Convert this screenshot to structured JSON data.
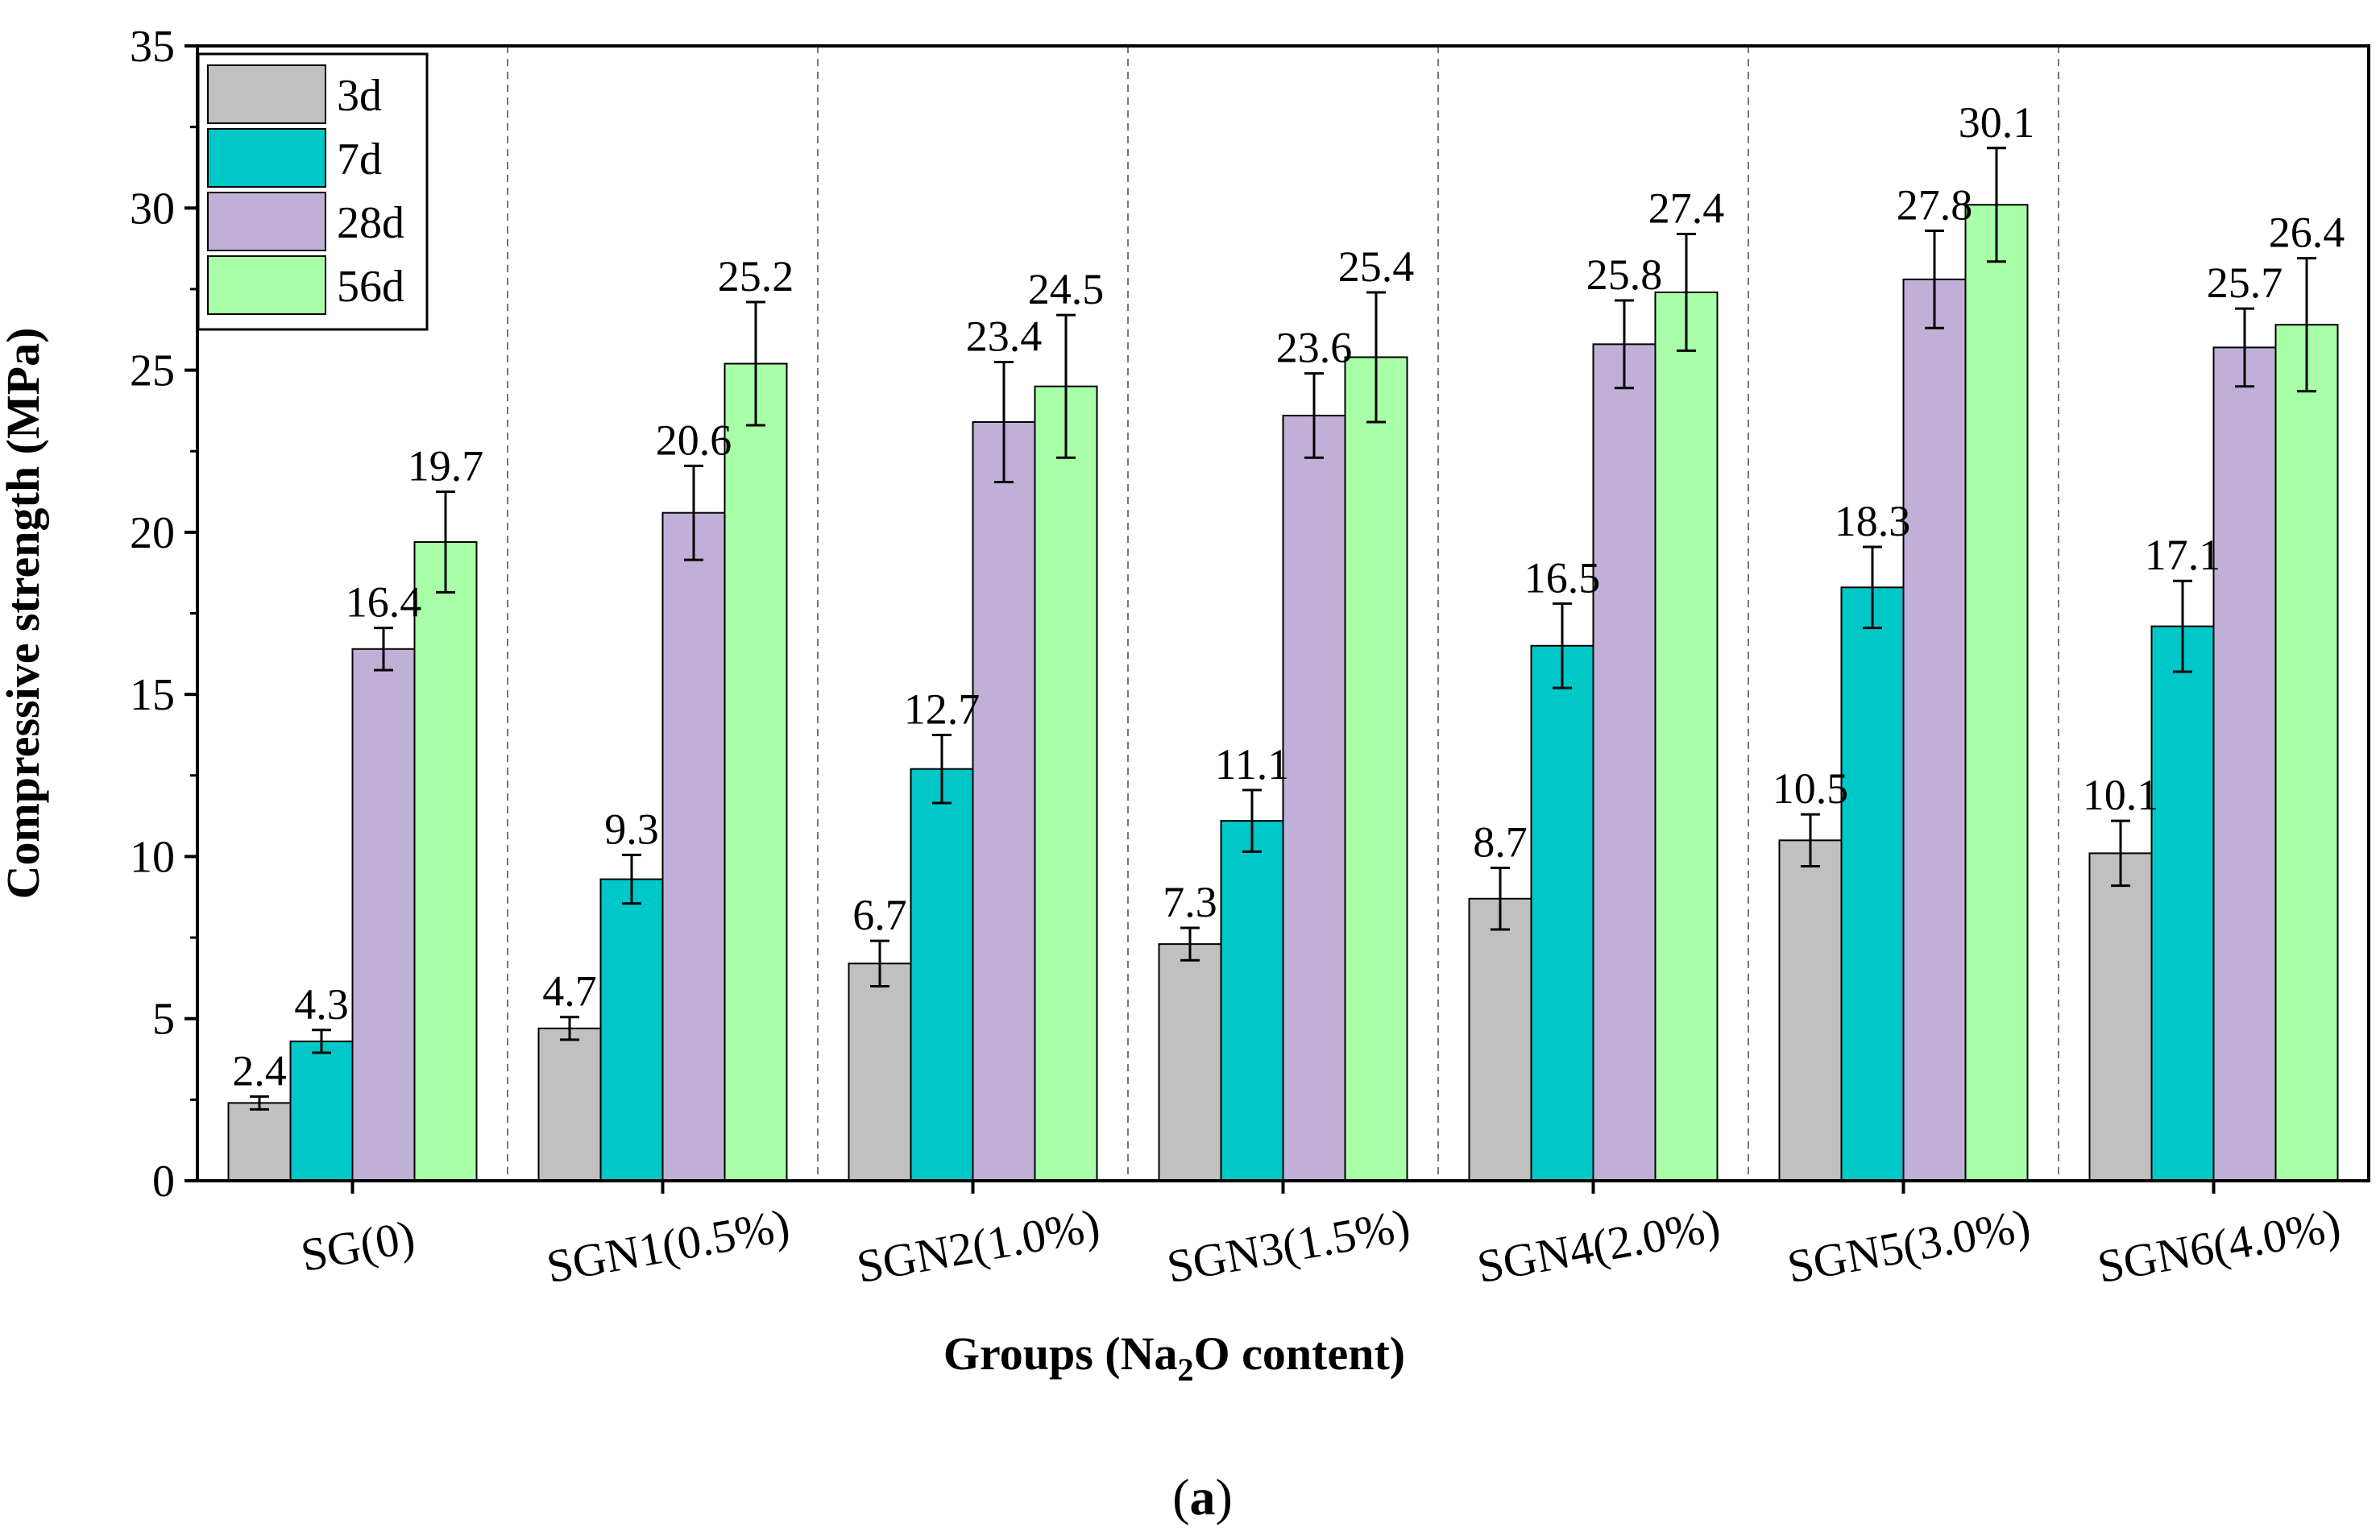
{
  "chart_data": {
    "type": "bar",
    "title": "",
    "xlabel_parts": [
      "Groups (Na",
      "2",
      "O content)"
    ],
    "ylabel": "Compressive strength (MPa)",
    "ylim": [
      0,
      35
    ],
    "yticks": [
      "0",
      "5",
      "10",
      "15",
      "20",
      "25",
      "30",
      "35"
    ],
    "categories": [
      "SG(0)",
      "SGN1(0.5%)",
      "SGN2(1.0%)",
      "SGN3(1.5%)",
      "SGN4(2.0%)",
      "SGN5(3.0%)",
      "SGN6(4.0%)"
    ],
    "legend_position": "top-left",
    "series": [
      {
        "name": "3d",
        "color": "#c0c0c0",
        "values": [
          2.4,
          4.7,
          6.7,
          7.3,
          8.7,
          10.5,
          10.1
        ],
        "errors": [
          0.2,
          0.35,
          0.7,
          0.5,
          0.95,
          0.8,
          1.0
        ]
      },
      {
        "name": "7d",
        "color": "#00c8c8",
        "values": [
          4.3,
          9.3,
          12.7,
          11.1,
          16.5,
          18.3,
          17.1
        ],
        "errors": [
          0.35,
          0.75,
          1.05,
          0.95,
          1.3,
          1.25,
          1.4
        ]
      },
      {
        "name": "28d",
        "color": "#c0b0d8",
        "values": [
          16.4,
          20.6,
          23.4,
          23.6,
          25.8,
          27.8,
          25.7
        ],
        "errors": [
          0.65,
          1.45,
          1.85,
          1.3,
          1.35,
          1.5,
          1.2
        ]
      },
      {
        "name": "56d",
        "color": "#a8ffa8",
        "values": [
          19.7,
          25.2,
          24.5,
          25.4,
          27.4,
          30.1,
          26.4
        ],
        "errors": [
          1.55,
          1.9,
          2.2,
          2.0,
          1.8,
          1.75,
          2.05
        ]
      }
    ],
    "data_labels": [
      [
        "2.4",
        "4.7",
        "6.7",
        "7.3",
        "8.7",
        "10.5",
        "10.1"
      ],
      [
        "4.3",
        "9.3",
        "12.7",
        "11.1",
        "16.5",
        "18.3",
        "17.1"
      ],
      [
        "16.4",
        "20.6",
        "23.4",
        "23.6",
        "25.8",
        "27.8",
        "25.7"
      ],
      [
        "19.7",
        "25.2",
        "24.5",
        "25.4",
        "27.4",
        "30.1",
        "26.4"
      ]
    ],
    "caption_parts": [
      "(",
      "a",
      ")"
    ]
  }
}
